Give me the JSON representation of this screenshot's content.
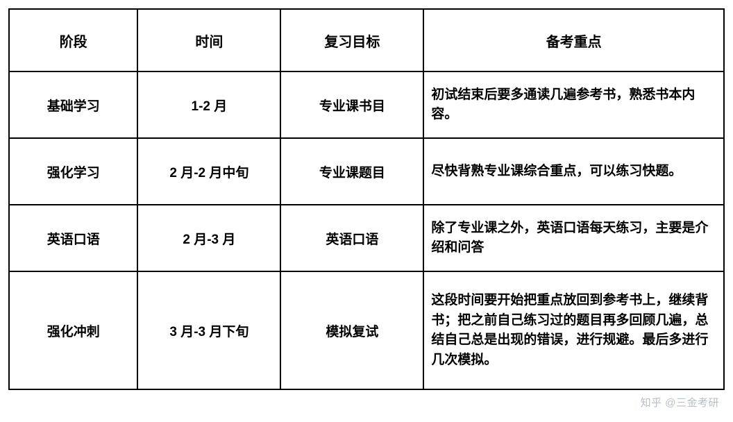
{
  "table": {
    "columns": [
      {
        "label": "阶段",
        "class": "col-stage"
      },
      {
        "label": "时间",
        "class": "col-time"
      },
      {
        "label": "复习目标",
        "class": "col-goal"
      },
      {
        "label": "备考重点",
        "class": "col-focus"
      }
    ],
    "rows": [
      {
        "stage": "基础学习",
        "time": "1-2 月",
        "goal": "专业课书目",
        "focus": "初试结束后要多通读几遍参考书，熟悉书本内容。",
        "tall": false
      },
      {
        "stage": "强化学习",
        "time": "2 月-2 月中旬",
        "goal": "专业课题目",
        "focus": "尽快背熟专业课综合重点，可以练习快题。",
        "tall": false
      },
      {
        "stage": "英语口语",
        "time": "2 月-3 月",
        "goal": "英语口语",
        "focus": "除了专业课之外，英语口语每天练习，主要是介绍和问答",
        "tall": false
      },
      {
        "stage": "强化冲刺",
        "time": "3 月-3 月下旬",
        "goal": "模拟复试",
        "focus": "这段时间要开始把重点放回到参考书上，继续背书；把之前自己练习过的题目再多回顾几遍，总结自己总是出现的错误，进行规避。最后多进行几次模拟。",
        "tall": true
      }
    ]
  },
  "watermark": "知乎 @三金考研",
  "styling": {
    "border_color": "#000000",
    "border_width": 2,
    "background_color": "#ffffff",
    "header_fontsize": 20,
    "body_fontsize": 19,
    "font_weight": "bold",
    "watermark_color": "#aab3bd"
  }
}
